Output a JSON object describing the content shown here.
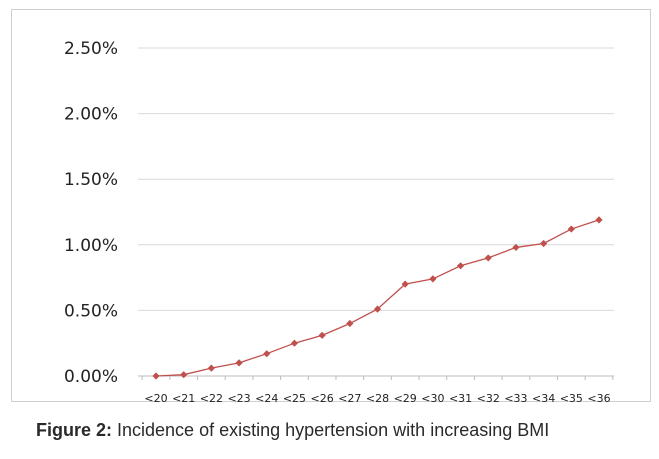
{
  "chart_data": {
    "type": "line",
    "categories": [
      "<20",
      "<21",
      "<22",
      "<23",
      "<24",
      "<25",
      "<26",
      "<27",
      "<28",
      "<29",
      "<30",
      "<31",
      "<32",
      "<33",
      "<34",
      "<35",
      "<36"
    ],
    "series": [
      {
        "values": [
          0.0,
          0.01,
          0.06,
          0.1,
          0.17,
          0.25,
          0.31,
          0.4,
          0.51,
          0.7,
          0.74,
          0.84,
          0.9,
          0.98,
          1.01,
          1.12,
          1.19
        ]
      }
    ],
    "yticks": [
      "0.00%",
      "0.50%",
      "1.00%",
      "1.50%",
      "2.00%",
      "2.50%"
    ],
    "ylim": [
      0,
      2.5
    ],
    "grid": true,
    "colors": {
      "line": "#c0504d",
      "grid": "#d9d9d9"
    }
  },
  "caption": {
    "label": "Figure 2:",
    "text": " Incidence of existing hypertension with increasing BMI"
  }
}
